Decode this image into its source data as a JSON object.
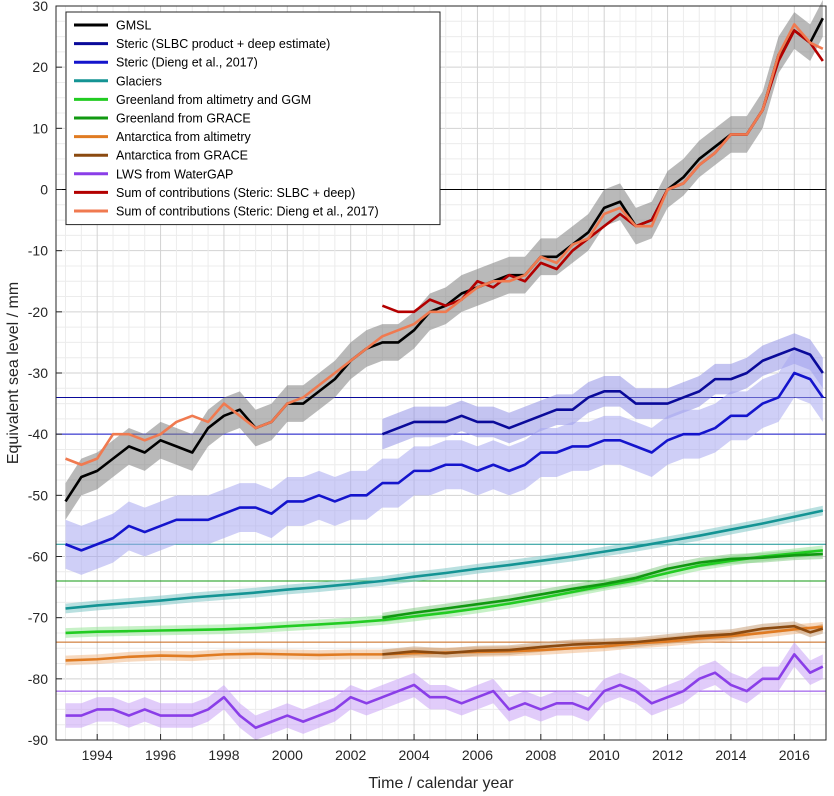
{
  "chart_data": {
    "type": "line",
    "title": "",
    "xlabel": "Time / calendar year",
    "ylabel": "Equivalent sea level / mm",
    "xlim": [
      1992.7,
      2017.0
    ],
    "ylim": [
      -90,
      30
    ],
    "xticks": [
      1994,
      1996,
      1998,
      2000,
      2002,
      2004,
      2006,
      2008,
      2010,
      2012,
      2014,
      2016
    ],
    "yticks": [
      30,
      20,
      10,
      0,
      -10,
      -20,
      -30,
      -40,
      -50,
      -60,
      -70,
      -80,
      -90
    ],
    "grid": true,
    "legend_position": "top-left",
    "baselines": [
      {
        "y": 0,
        "color": "#000000"
      },
      {
        "y": -34,
        "color": "#0a0a9a"
      },
      {
        "y": -40,
        "color": "#1414cc"
      },
      {
        "y": -58,
        "color": "#149494"
      },
      {
        "y": -64,
        "color": "#119911"
      },
      {
        "y": -74,
        "color": "#c86414"
      },
      {
        "y": -82,
        "color": "#8a3ee8"
      }
    ],
    "series": [
      {
        "name": "GMSL",
        "color": "#000000",
        "band": "#808080",
        "x": [
          1993.0,
          1993.5,
          1994.0,
          1994.5,
          1995.0,
          1995.5,
          1996.0,
          1996.5,
          1997.0,
          1997.5,
          1998.0,
          1998.5,
          1999.0,
          1999.5,
          2000.0,
          2000.5,
          2001.0,
          2001.5,
          2002.0,
          2002.5,
          2003.0,
          2003.5,
          2004.0,
          2004.5,
          2005.0,
          2005.5,
          2006.0,
          2006.5,
          2007.0,
          2007.5,
          2008.0,
          2008.5,
          2009.0,
          2009.5,
          2010.0,
          2010.5,
          2011.0,
          2011.5,
          2012.0,
          2012.5,
          2013.0,
          2013.5,
          2014.0,
          2014.5,
          2015.0,
          2015.5,
          2016.0,
          2016.5,
          2016.9
        ],
        "y": [
          -51,
          -47,
          -46,
          -44,
          -42,
          -43,
          -41,
          -42,
          -43,
          -39,
          -37,
          -36,
          -39,
          -38,
          -35,
          -35,
          -33,
          -31,
          -28,
          -26,
          -25,
          -25,
          -23,
          -20,
          -19,
          -17,
          -16,
          -15,
          -14,
          -14,
          -11,
          -11,
          -9,
          -7,
          -3,
          -2,
          -6,
          -5,
          0,
          2,
          5,
          7,
          9,
          9,
          13,
          22,
          26,
          24,
          28
        ]
      },
      {
        "name": "Steric (SLBC product + deep estimate)",
        "color": "#0a0a9a",
        "band": "#9494e6",
        "x": [
          2003.0,
          2003.5,
          2004.0,
          2004.5,
          2005.0,
          2005.5,
          2006.0,
          2006.5,
          2007.0,
          2007.5,
          2008.0,
          2008.5,
          2009.0,
          2009.5,
          2010.0,
          2010.5,
          2011.0,
          2011.5,
          2012.0,
          2012.5,
          2013.0,
          2013.5,
          2014.0,
          2014.5,
          2015.0,
          2015.5,
          2016.0,
          2016.5,
          2016.9
        ],
        "y": [
          -40,
          -39,
          -38,
          -38,
          -38,
          -37,
          -38,
          -38,
          -39,
          -38,
          -37,
          -36,
          -36,
          -34,
          -33,
          -33,
          -35,
          -35,
          -35,
          -34,
          -33,
          -31,
          -31,
          -30,
          -28,
          -27,
          -26,
          -27,
          -30
        ]
      },
      {
        "name": "Steric (Dieng et al., 2017)",
        "color": "#1414cc",
        "band": "#a8a8f0",
        "x": [
          1993.0,
          1993.5,
          1994.0,
          1994.5,
          1995.0,
          1995.5,
          1996.0,
          1996.5,
          1997.0,
          1997.5,
          1998.0,
          1998.5,
          1999.0,
          1999.5,
          2000.0,
          2000.5,
          2001.0,
          2001.5,
          2002.0,
          2002.5,
          2003.0,
          2003.5,
          2004.0,
          2004.5,
          2005.0,
          2005.5,
          2006.0,
          2006.5,
          2007.0,
          2007.5,
          2008.0,
          2008.5,
          2009.0,
          2009.5,
          2010.0,
          2010.5,
          2011.0,
          2011.5,
          2012.0,
          2012.5,
          2013.0,
          2013.5,
          2014.0,
          2014.5,
          2015.0,
          2015.5,
          2016.0,
          2016.5,
          2016.9
        ],
        "y": [
          -58,
          -59,
          -58,
          -57,
          -55,
          -56,
          -55,
          -54,
          -54,
          -54,
          -53,
          -52,
          -52,
          -53,
          -51,
          -51,
          -50,
          -51,
          -50,
          -50,
          -48,
          -48,
          -46,
          -46,
          -45,
          -45,
          -46,
          -45,
          -46,
          -45,
          -43,
          -43,
          -42,
          -42,
          -41,
          -41,
          -42,
          -43,
          -41,
          -40,
          -40,
          -39,
          -37,
          -37,
          -35,
          -34,
          -30,
          -31,
          -34
        ]
      },
      {
        "name": "Glaciers",
        "color": "#149494",
        "band": "#7fc6c6",
        "x": [
          1993.0,
          1994.0,
          1995.0,
          1996.0,
          1997.0,
          1998.0,
          1999.0,
          2000.0,
          2001.0,
          2002.0,
          2003.0,
          2004.0,
          2005.0,
          2006.0,
          2007.0,
          2008.0,
          2009.0,
          2010.0,
          2011.0,
          2012.0,
          2013.0,
          2014.0,
          2015.0,
          2016.0,
          2016.9
        ],
        "y": [
          -68.5,
          -68,
          -67.6,
          -67.2,
          -66.7,
          -66.3,
          -65.9,
          -65.4,
          -65,
          -64.5,
          -64,
          -63.3,
          -62.7,
          -62,
          -61.4,
          -60.7,
          -60,
          -59.2,
          -58.4,
          -57.5,
          -56.6,
          -55.6,
          -54.6,
          -53.5,
          -52.5
        ]
      },
      {
        "name": "Greenland from altimetry and GGM",
        "color": "#22cc22",
        "band": "#99e699",
        "x": [
          1993.0,
          1994.0,
          1995.0,
          1996.0,
          1997.0,
          1998.0,
          1999.0,
          2000.0,
          2001.0,
          2002.0,
          2003.0,
          2004.0,
          2005.0,
          2006.0,
          2007.0,
          2008.0,
          2009.0,
          2010.0,
          2011.0,
          2012.0,
          2013.0,
          2014.0,
          2015.0,
          2016.0,
          2016.9
        ],
        "y": [
          -72.5,
          -72.3,
          -72.2,
          -72.1,
          -72,
          -71.9,
          -71.7,
          -71.4,
          -71.1,
          -70.8,
          -70.4,
          -69.8,
          -69.2,
          -68.5,
          -67.7,
          -66.8,
          -65.8,
          -64.8,
          -63.9,
          -62.7,
          -61.5,
          -60.7,
          -60,
          -59.5,
          -59
        ]
      },
      {
        "name": "Greenland from GRACE",
        "color": "#119911",
        "band": "#88cc88",
        "x": [
          2003.0,
          2004.0,
          2005.0,
          2006.0,
          2007.0,
          2008.0,
          2009.0,
          2010.0,
          2011.0,
          2012.0,
          2013.0,
          2014.0,
          2015.0,
          2016.0,
          2016.9
        ],
        "y": [
          -70,
          -69.2,
          -68.5,
          -67.8,
          -67.1,
          -66.2,
          -65.3,
          -64.5,
          -63.5,
          -62,
          -61,
          -60.4,
          -60.2,
          -59.8,
          -59.6
        ]
      },
      {
        "name": "Antarctica from altimetry",
        "color": "#e07b22",
        "band": "#f0b98a",
        "x": [
          1993.0,
          1994.0,
          1995.0,
          1996.0,
          1997.0,
          1998.0,
          1999.0,
          2000.0,
          2001.0,
          2002.0,
          2003.0,
          2004.0,
          2005.0,
          2006.0,
          2007.0,
          2008.0,
          2009.0,
          2010.0,
          2011.0,
          2012.0,
          2013.0,
          2014.0,
          2015.0,
          2016.0,
          2016.9
        ],
        "y": [
          -77,
          -76.8,
          -76.4,
          -76.2,
          -76.3,
          -76,
          -75.9,
          -76,
          -76.1,
          -76,
          -76,
          -75.8,
          -75.7,
          -75.6,
          -75.5,
          -75.3,
          -75,
          -74.7,
          -74.2,
          -73.9,
          -73.4,
          -73,
          -72.5,
          -71.9,
          -71.5
        ]
      },
      {
        "name": "Antarctica from GRACE",
        "color": "#8b4a10",
        "band": "#c9a07a",
        "x": [
          2003.0,
          2004.0,
          2005.0,
          2006.0,
          2007.0,
          2008.0,
          2009.0,
          2010.0,
          2011.0,
          2012.0,
          2013.0,
          2014.0,
          2015.0,
          2016.0,
          2016.5,
          2016.9
        ],
        "y": [
          -76,
          -75.5,
          -75.8,
          -75.4,
          -75.3,
          -74.8,
          -74.4,
          -74.2,
          -74,
          -73.5,
          -73,
          -72.7,
          -71.8,
          -71.4,
          -72.4,
          -71.8
        ]
      },
      {
        "name": "LWS from WaterGAP",
        "color": "#8a3ee8",
        "band": "#c9a3f5",
        "x": [
          1993.0,
          1993.5,
          1994.0,
          1994.5,
          1995.0,
          1995.5,
          1996.0,
          1996.5,
          1997.0,
          1997.5,
          1998.0,
          1998.5,
          1999.0,
          1999.5,
          2000.0,
          2000.5,
          2001.0,
          2001.5,
          2002.0,
          2002.5,
          2003.0,
          2003.5,
          2004.0,
          2004.5,
          2005.0,
          2005.5,
          2006.0,
          2006.5,
          2007.0,
          2007.5,
          2008.0,
          2008.5,
          2009.0,
          2009.5,
          2010.0,
          2010.5,
          2011.0,
          2011.5,
          2012.0,
          2012.5,
          2013.0,
          2013.5,
          2014.0,
          2014.5,
          2015.0,
          2015.5,
          2016.0,
          2016.5,
          2016.9
        ],
        "y": [
          -86,
          -86,
          -85,
          -85,
          -86,
          -85,
          -86,
          -86,
          -86,
          -85,
          -83,
          -86,
          -88,
          -87,
          -86,
          -87,
          -86,
          -85,
          -83,
          -84,
          -83,
          -82,
          -81,
          -83,
          -83,
          -84,
          -83,
          -82,
          -85,
          -84,
          -85,
          -84,
          -84,
          -85,
          -82,
          -81,
          -82,
          -84,
          -83,
          -82,
          -80,
          -79,
          -81,
          -82,
          -80,
          -80,
          -76,
          -79,
          -78
        ]
      },
      {
        "name": "Sum of contributions (Steric: SLBC + deep)",
        "color": "#b30000",
        "band": "",
        "x": [
          2003.0,
          2003.5,
          2004.0,
          2004.5,
          2005.0,
          2005.5,
          2006.0,
          2006.5,
          2007.0,
          2007.5,
          2008.0,
          2008.5,
          2009.0,
          2009.5,
          2010.0,
          2010.5,
          2011.0,
          2011.5,
          2012.0,
          2012.5,
          2013.0,
          2013.5,
          2014.0,
          2014.5,
          2015.0,
          2015.5,
          2016.0,
          2016.5,
          2016.9
        ],
        "y": [
          -19,
          -20,
          -20,
          -18,
          -19,
          -18,
          -15,
          -16,
          -14,
          -15,
          -12,
          -13,
          -10,
          -8,
          -6,
          -4,
          -6,
          -5,
          0,
          1,
          4,
          6,
          9,
          9,
          13,
          21,
          26,
          24,
          21
        ]
      },
      {
        "name": "Sum of contributions (Steric: Dieng et al., 2017)",
        "color": "#f07a50",
        "band": "",
        "x": [
          1993.0,
          1993.5,
          1994.0,
          1994.5,
          1995.0,
          1995.5,
          1996.0,
          1996.5,
          1997.0,
          1997.5,
          1998.0,
          1998.5,
          1999.0,
          1999.5,
          2000.0,
          2000.5,
          2001.0,
          2001.5,
          2002.0,
          2002.5,
          2003.0,
          2003.5,
          2004.0,
          2004.5,
          2005.0,
          2005.5,
          2006.0,
          2006.5,
          2007.0,
          2007.5,
          2008.0,
          2008.5,
          2009.0,
          2009.5,
          2010.0,
          2010.5,
          2011.0,
          2011.5,
          2012.0,
          2012.5,
          2013.0,
          2013.5,
          2014.0,
          2014.5,
          2015.0,
          2015.5,
          2016.0,
          2016.5,
          2016.9
        ],
        "y": [
          -44,
          -45,
          -44,
          -40,
          -40,
          -41,
          -40,
          -38,
          -37,
          -38,
          -35,
          -37,
          -39,
          -38,
          -35,
          -34,
          -32,
          -30,
          -28,
          -26,
          -24,
          -23,
          -22,
          -20,
          -20,
          -18,
          -16,
          -15,
          -15,
          -14,
          -11,
          -12,
          -9,
          -8,
          -4,
          -3,
          -6,
          -6,
          0,
          1,
          4,
          6,
          9,
          9,
          13,
          22,
          27,
          24,
          23
        ]
      }
    ]
  }
}
